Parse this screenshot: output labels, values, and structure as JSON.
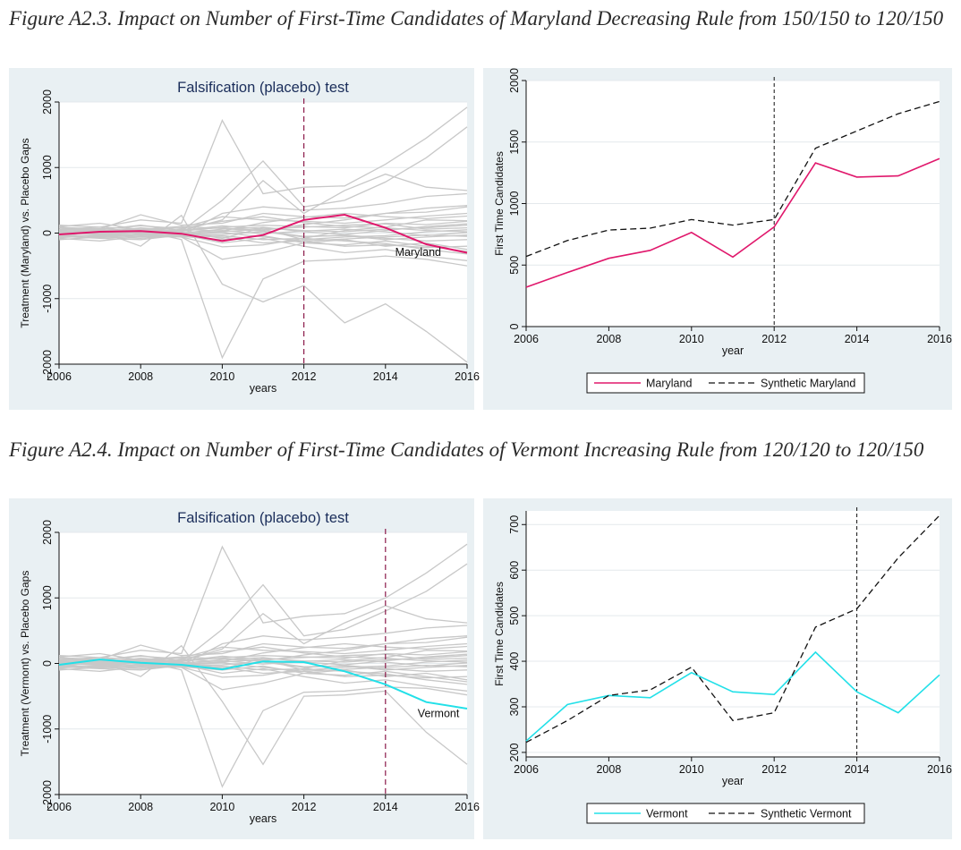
{
  "captions": {
    "fig_a2_3": "Figure A2.3. Impact on Number of First-Time Candidates of Maryland Decreasing Rule from 150/150 to 120/150",
    "fig_a2_4": "Figure A2.4. Impact on Number of First-Time Candidates of Vermont Increasing Rule from 120/120 to 120/150"
  },
  "chart_data": [
    {
      "id": "maryland-placebo",
      "type": "line",
      "title": "Falsification (placebo) test",
      "xlabel": "years",
      "ylabel": "Treatment (Maryland) vs. Placebo Gaps",
      "xlim": [
        2006,
        2016
      ],
      "ylim": [
        -2000,
        2000
      ],
      "xticks": [
        2006,
        2008,
        2010,
        2012,
        2014,
        2016
      ],
      "yticks": [
        -2000,
        -1000,
        0,
        1000,
        2000
      ],
      "grid": true,
      "treatment_year": 2012,
      "x": [
        2006,
        2007,
        2008,
        2009,
        2010,
        2011,
        2012,
        2013,
        2014,
        2015,
        2016
      ],
      "treated": {
        "name": "Maryland",
        "color": "#e0186c",
        "values": [
          -20,
          20,
          30,
          -10,
          -120,
          -30,
          200,
          280,
          80,
          -170,
          -300
        ]
      },
      "placebo_color": "#c8c8c8",
      "placebos": [
        [
          60,
          90,
          200,
          150,
          1720,
          600,
          700,
          720,
          1050,
          1450,
          1920
        ],
        [
          20,
          10,
          80,
          30,
          500,
          1100,
          400,
          500,
          780,
          1150,
          1620
        ],
        [
          80,
          50,
          120,
          40,
          200,
          800,
          300,
          650,
          900,
          700,
          650
        ],
        [
          -50,
          -80,
          -100,
          -30,
          300,
          400,
          350,
          380,
          450,
          560,
          600
        ],
        [
          40,
          60,
          280,
          120,
          150,
          300,
          250,
          230,
          300,
          380,
          420
        ],
        [
          -80,
          -120,
          -50,
          -60,
          -400,
          -300,
          -150,
          -100,
          -200,
          -150,
          -250
        ],
        [
          100,
          150,
          50,
          80,
          250,
          200,
          180,
          150,
          200,
          260,
          300
        ],
        [
          -20,
          30,
          -200,
          270,
          -780,
          -1050,
          -800,
          -1370,
          -1080,
          -1500,
          -1970
        ],
        [
          30,
          -20,
          40,
          -100,
          -1900,
          -700,
          -430,
          -400,
          -350,
          -400,
          -500
        ],
        [
          -60,
          -30,
          20,
          -10,
          20,
          60,
          -100,
          -60,
          -40,
          20,
          50
        ],
        [
          50,
          70,
          30,
          20,
          -80,
          80,
          40,
          20,
          60,
          80,
          120
        ],
        [
          -30,
          -50,
          -20,
          -40,
          -60,
          -150,
          -120,
          -200,
          -180,
          -220,
          -200
        ],
        [
          10,
          40,
          60,
          30,
          90,
          120,
          100,
          80,
          150,
          130,
          180
        ],
        [
          -100,
          -60,
          -80,
          -20,
          -150,
          -80,
          -200,
          -300,
          -250,
          -350,
          -420
        ],
        [
          120,
          90,
          60,
          100,
          70,
          30,
          -50,
          -40,
          -100,
          -60,
          -30
        ],
        [
          0,
          -20,
          -40,
          10,
          40,
          -10,
          30,
          60,
          20,
          -40,
          10
        ],
        [
          -40,
          20,
          10,
          -30,
          -20,
          20,
          -60,
          -30,
          -80,
          -120,
          -100
        ],
        [
          60,
          30,
          -10,
          40,
          110,
          60,
          90,
          120,
          140,
          60,
          80
        ],
        [
          -10,
          -70,
          -30,
          -50,
          -100,
          -40,
          -150,
          -180,
          -120,
          -200,
          -280
        ],
        [
          30,
          10,
          50,
          0,
          60,
          90,
          20,
          -20,
          40,
          100,
          140
        ],
        [
          -70,
          -40,
          -60,
          -20,
          -40,
          -100,
          -80,
          -120,
          -160,
          -250,
          -320
        ],
        [
          20,
          50,
          -20,
          60,
          30,
          160,
          240,
          300,
          250,
          220,
          260
        ],
        [
          -20,
          0,
          30,
          -20,
          10,
          -60,
          -120,
          -90,
          -60,
          -30,
          -50
        ],
        [
          90,
          60,
          110,
          70,
          180,
          250,
          160,
          100,
          80,
          40,
          20
        ],
        [
          -50,
          -30,
          0,
          -60,
          -210,
          -180,
          -80,
          40,
          90,
          200,
          190
        ],
        [
          10,
          -10,
          20,
          50,
          80,
          40,
          130,
          200,
          300,
          320,
          400
        ]
      ]
    },
    {
      "id": "maryland-synthetic",
      "type": "line",
      "title": "",
      "xlabel": "year",
      "ylabel": "First Time Candidates",
      "xlim": [
        2006,
        2016
      ],
      "ylim": [
        0,
        2000
      ],
      "xticks": [
        2006,
        2008,
        2010,
        2012,
        2014,
        2016
      ],
      "yticks": [
        0,
        500,
        1000,
        1500,
        2000
      ],
      "grid": true,
      "treatment_year": 2012,
      "x": [
        2006,
        2007,
        2008,
        2009,
        2010,
        2011,
        2012,
        2013,
        2014,
        2015,
        2016
      ],
      "series": [
        {
          "name": "Maryland",
          "color": "#e0186c",
          "dash": false,
          "values": [
            320,
            440,
            555,
            620,
            765,
            565,
            810,
            1330,
            1215,
            1225,
            1365
          ]
        },
        {
          "name": "Synthetic Maryland",
          "color": "#111111",
          "dash": true,
          "values": [
            570,
            700,
            785,
            800,
            870,
            825,
            870,
            1450,
            1590,
            1730,
            1830
          ]
        }
      ],
      "legend": "bottom"
    },
    {
      "id": "vermont-placebo",
      "type": "line",
      "title": "Falsification (placebo) test",
      "xlabel": "years",
      "ylabel": "Treatment (Vermont) vs. Placebo Gaps",
      "xlim": [
        2006,
        2016
      ],
      "ylim": [
        -2000,
        2000
      ],
      "xticks": [
        2006,
        2008,
        2010,
        2012,
        2014,
        2016
      ],
      "yticks": [
        -2000,
        -1000,
        0,
        1000,
        2000
      ],
      "grid": true,
      "treatment_year": 2014,
      "x": [
        2006,
        2007,
        2008,
        2009,
        2010,
        2011,
        2012,
        2013,
        2014,
        2015,
        2016
      ],
      "treated": {
        "name": "Vermont",
        "color": "#22e0e8",
        "values": [
          -20,
          60,
          10,
          -20,
          -90,
          30,
          20,
          -120,
          -320,
          -590,
          -690
        ]
      },
      "placebo_color": "#c8c8c8",
      "placebos": [
        [
          60,
          90,
          200,
          150,
          1780,
          620,
          720,
          760,
          1000,
          1380,
          1820
        ],
        [
          20,
          10,
          80,
          30,
          520,
          1200,
          420,
          520,
          800,
          1100,
          1520
        ],
        [
          80,
          50,
          120,
          40,
          220,
          760,
          300,
          620,
          880,
          680,
          620
        ],
        [
          -50,
          -80,
          -100,
          -30,
          300,
          420,
          360,
          400,
          460,
          540,
          580
        ],
        [
          40,
          60,
          280,
          120,
          150,
          300,
          250,
          230,
          300,
          380,
          420
        ],
        [
          -80,
          -120,
          -50,
          -60,
          -400,
          -300,
          -150,
          -100,
          -200,
          -150,
          -250
        ],
        [
          100,
          150,
          50,
          80,
          250,
          200,
          180,
          150,
          200,
          260,
          300
        ],
        [
          -20,
          30,
          -200,
          270,
          -580,
          -1540,
          -500,
          -480,
          -420,
          -1050,
          -1540
        ],
        [
          30,
          -20,
          40,
          -100,
          -1880,
          -720,
          -440,
          -420,
          -360,
          -380,
          -480
        ],
        [
          -60,
          -30,
          20,
          -10,
          20,
          60,
          -100,
          -60,
          -40,
          20,
          50
        ],
        [
          50,
          70,
          30,
          20,
          -80,
          80,
          40,
          20,
          60,
          80,
          120
        ],
        [
          -30,
          -50,
          -20,
          -40,
          -60,
          -150,
          -120,
          -200,
          -180,
          -220,
          -200
        ],
        [
          10,
          40,
          60,
          30,
          90,
          120,
          100,
          80,
          150,
          130,
          180
        ],
        [
          -100,
          -60,
          -80,
          -20,
          -150,
          -80,
          -200,
          -300,
          -250,
          -350,
          -420
        ],
        [
          120,
          90,
          60,
          100,
          70,
          30,
          -50,
          -40,
          -100,
          -60,
          -30
        ],
        [
          0,
          -20,
          -40,
          10,
          40,
          -10,
          30,
          60,
          20,
          -40,
          10
        ],
        [
          -40,
          20,
          10,
          -30,
          -20,
          20,
          -60,
          -30,
          -80,
          -120,
          -100
        ],
        [
          60,
          30,
          -10,
          40,
          110,
          60,
          90,
          120,
          140,
          60,
          80
        ],
        [
          -10,
          -70,
          -30,
          -50,
          -100,
          -40,
          -150,
          -180,
          -120,
          -200,
          -280
        ],
        [
          30,
          10,
          50,
          0,
          60,
          90,
          20,
          -20,
          40,
          100,
          140
        ],
        [
          -70,
          -40,
          -60,
          -20,
          -40,
          -100,
          -80,
          -120,
          -160,
          -250,
          -320
        ],
        [
          20,
          50,
          -20,
          60,
          30,
          160,
          240,
          300,
          250,
          220,
          260
        ],
        [
          -20,
          0,
          30,
          -20,
          10,
          -60,
          -120,
          -90,
          -60,
          -30,
          -50
        ],
        [
          90,
          60,
          110,
          70,
          180,
          250,
          160,
          100,
          80,
          40,
          20
        ],
        [
          -50,
          -30,
          0,
          -60,
          -210,
          -180,
          -80,
          40,
          90,
          200,
          190
        ],
        [
          10,
          -10,
          20,
          50,
          80,
          40,
          130,
          200,
          300,
          320,
          400
        ]
      ]
    },
    {
      "id": "vermont-synthetic",
      "type": "line",
      "title": "",
      "xlabel": "year",
      "ylabel": "First Time Candidates",
      "xlim": [
        2006,
        2016
      ],
      "ylim": [
        190,
        730
      ],
      "xticks": [
        2006,
        2008,
        2010,
        2012,
        2014,
        2016
      ],
      "yticks": [
        200,
        300,
        400,
        500,
        600,
        700
      ],
      "grid": true,
      "treatment_year": 2014,
      "x": [
        2006,
        2007,
        2008,
        2009,
        2010,
        2011,
        2012,
        2013,
        2014,
        2015,
        2016
      ],
      "series": [
        {
          "name": "Vermont",
          "color": "#22e0e8",
          "dash": false,
          "values": [
            225,
            305,
            325,
            320,
            375,
            333,
            327,
            420,
            333,
            287,
            370
          ]
        },
        {
          "name": "Synthetic Vermont",
          "color": "#111111",
          "dash": true,
          "values": [
            222,
            270,
            325,
            337,
            387,
            270,
            287,
            475,
            515,
            627,
            720
          ]
        }
      ],
      "legend": "bottom"
    }
  ]
}
